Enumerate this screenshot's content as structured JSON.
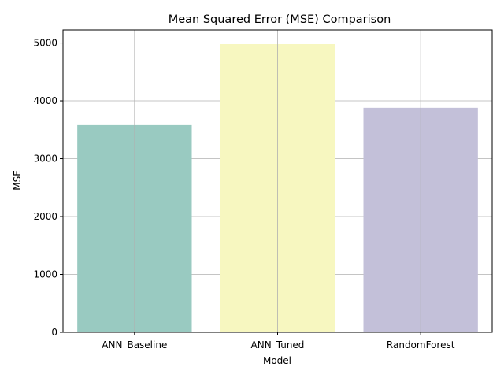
{
  "chart_data": {
    "type": "bar",
    "title": "Mean Squared Error (MSE) Comparison",
    "xlabel": "Model",
    "ylabel": "MSE",
    "categories": [
      "ANN_Baseline",
      "ANN_Tuned",
      "RandomForest"
    ],
    "values": [
      3580,
      4980,
      3880
    ],
    "colors": [
      "#99cac1",
      "#f7f7c0",
      "#c3c0d9"
    ],
    "ylim": [
      0,
      5225
    ],
    "yticks": [
      0,
      1000,
      2000,
      3000,
      4000,
      5000
    ],
    "ytick_labels": [
      "0",
      "1000",
      "2000",
      "3000",
      "4000",
      "5000"
    ],
    "grid": true
  }
}
